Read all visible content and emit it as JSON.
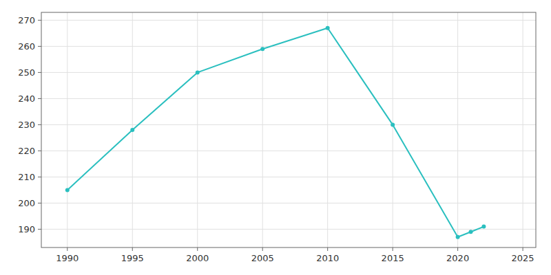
{
  "chart_data": {
    "type": "line",
    "x": [
      1990,
      1995,
      2000,
      2005,
      2010,
      2015,
      2020,
      2021,
      2022
    ],
    "values": [
      205,
      228,
      250,
      259,
      267,
      230,
      187,
      189,
      191
    ],
    "color": "#2ABFBF",
    "marker": "circle",
    "xlim": [
      1988,
      2026
    ],
    "ylim": [
      183,
      273
    ],
    "xticks": [
      1990,
      1995,
      2000,
      2005,
      2010,
      2015,
      2020,
      2025
    ],
    "yticks": [
      190,
      200,
      210,
      220,
      230,
      240,
      250,
      260,
      270
    ],
    "grid": true
  }
}
